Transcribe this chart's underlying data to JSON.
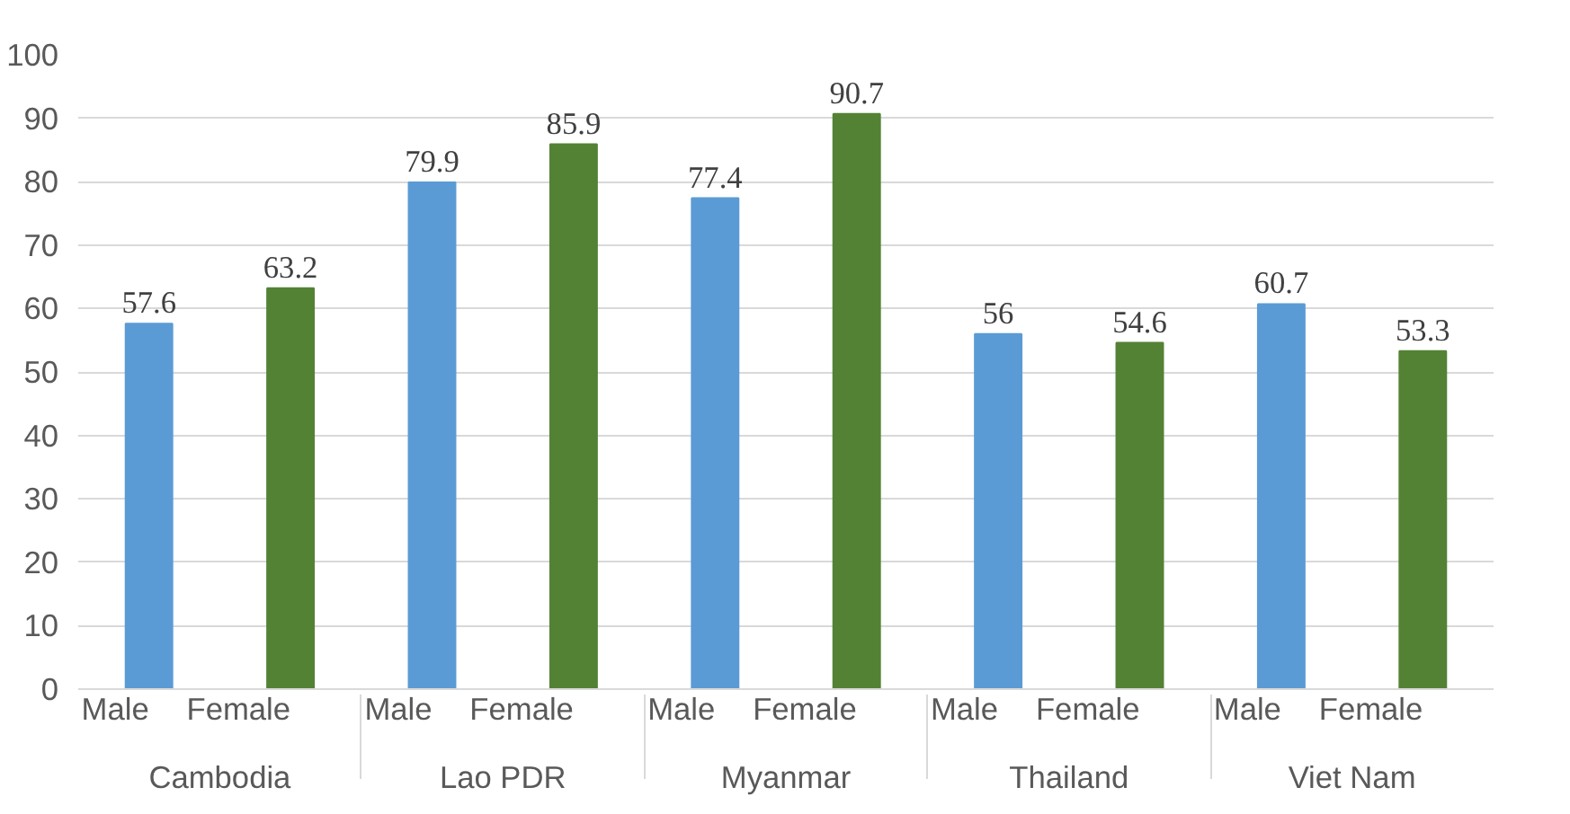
{
  "chart_data": {
    "type": "bar",
    "categories": [
      "Male",
      "Female",
      "Male",
      "Female",
      "Male",
      "Female",
      "Male",
      "Female",
      "Male",
      "Female"
    ],
    "annotations": [
      "Cambodia",
      "Lao PDR",
      "Myanmar",
      "Thailand",
      "Viet Nam"
    ],
    "values": [
      57.6,
      63.2,
      79.9,
      85.9,
      77.4,
      90.7,
      56,
      54.6,
      60.7,
      53.3
    ],
    "colors": [
      "#5b9bd5",
      "#548235",
      "#5b9bd5",
      "#548235",
      "#5b9bd5",
      "#548235",
      "#5b9bd5",
      "#548235",
      "#5b9bd5",
      "#548235"
    ],
    "ylim": [
      0,
      100
    ],
    "yticks": [
      0,
      10,
      20,
      30,
      40,
      50,
      60,
      70,
      80,
      90,
      100
    ],
    "grid": "y",
    "data_labels": true
  }
}
